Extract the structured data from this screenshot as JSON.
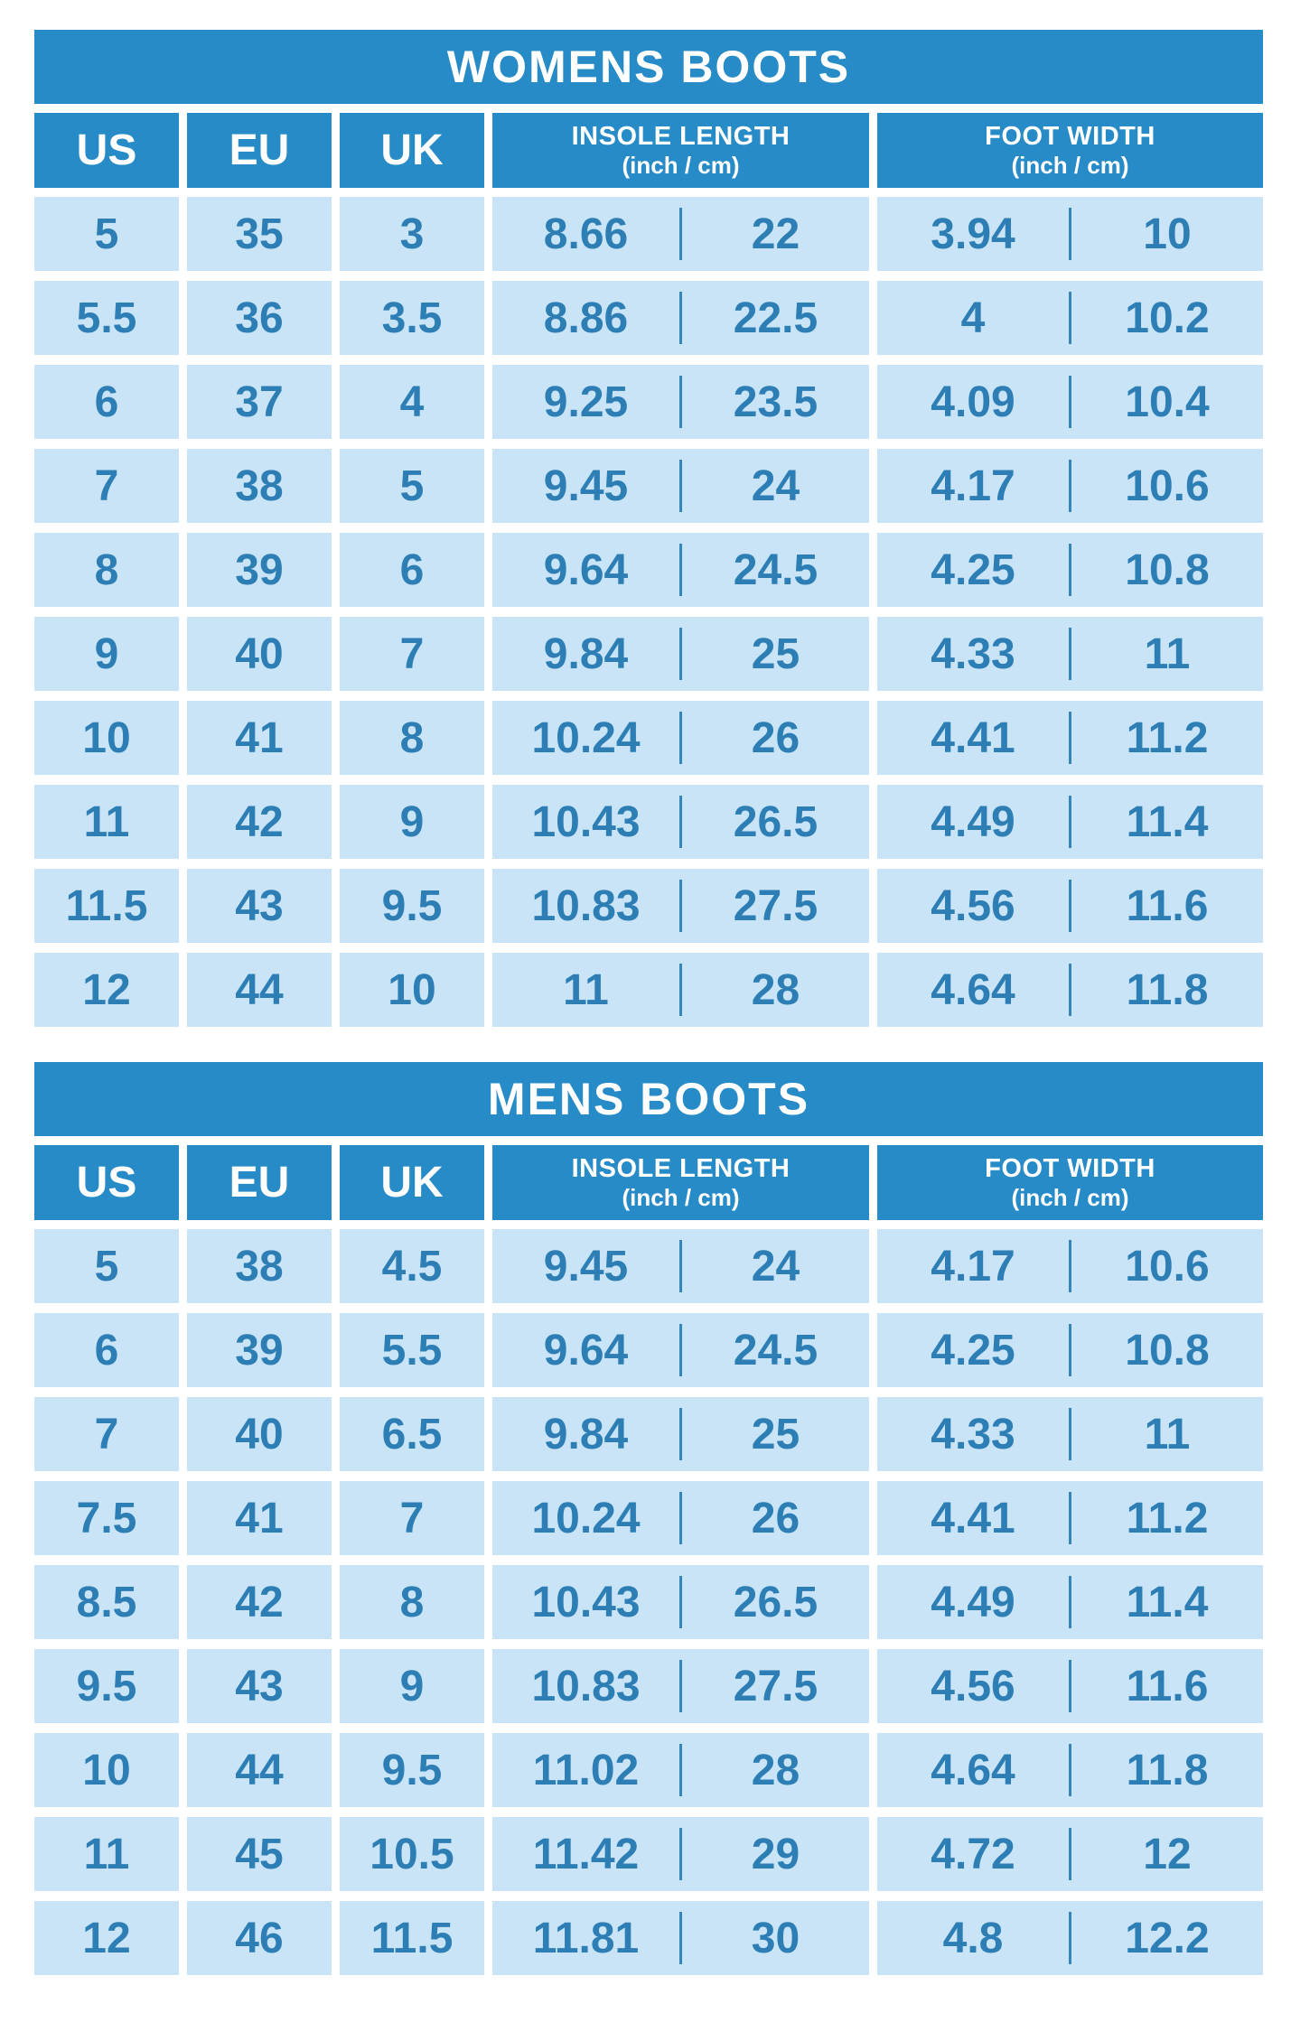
{
  "colors": {
    "header_blue": "#268bc7",
    "row_light_blue": "#c9e4f6",
    "value_text_blue": "#2c7eb4",
    "divider_blue": "#3585b8",
    "background": "#ffffff",
    "header_text": "#ffffff"
  },
  "chart_data": [
    {
      "type": "table",
      "title": "WOMENS BOOTS",
      "columns": [
        {
          "label": "US"
        },
        {
          "label": "EU"
        },
        {
          "label": "UK"
        },
        {
          "label": "INSOLE LENGTH",
          "sub": "(inch / cm)"
        },
        {
          "label": "FOOT WIDTH",
          "sub": "(inch / cm)"
        }
      ],
      "rows": [
        [
          "5",
          "35",
          "3",
          "8.66",
          "22",
          "3.94",
          "10"
        ],
        [
          "5.5",
          "36",
          "3.5",
          "8.86",
          "22.5",
          "4",
          "10.2"
        ],
        [
          "6",
          "37",
          "4",
          "9.25",
          "23.5",
          "4.09",
          "10.4"
        ],
        [
          "7",
          "38",
          "5",
          "9.45",
          "24",
          "4.17",
          "10.6"
        ],
        [
          "8",
          "39",
          "6",
          "9.64",
          "24.5",
          "4.25",
          "10.8"
        ],
        [
          "9",
          "40",
          "7",
          "9.84",
          "25",
          "4.33",
          "11"
        ],
        [
          "10",
          "41",
          "8",
          "10.24",
          "26",
          "4.41",
          "11.2"
        ],
        [
          "11",
          "42",
          "9",
          "10.43",
          "26.5",
          "4.49",
          "11.4"
        ],
        [
          "11.5",
          "43",
          "9.5",
          "10.83",
          "27.5",
          "4.56",
          "11.6"
        ],
        [
          "12",
          "44",
          "10",
          "11",
          "28",
          "4.64",
          "11.8"
        ]
      ]
    },
    {
      "type": "table",
      "title": "MENS BOOTS",
      "columns": [
        {
          "label": "US"
        },
        {
          "label": "EU"
        },
        {
          "label": "UK"
        },
        {
          "label": "INSOLE LENGTH",
          "sub": "(inch / cm)"
        },
        {
          "label": "FOOT WIDTH",
          "sub": "(inch / cm)"
        }
      ],
      "rows": [
        [
          "5",
          "38",
          "4.5",
          "9.45",
          "24",
          "4.17",
          "10.6"
        ],
        [
          "6",
          "39",
          "5.5",
          "9.64",
          "24.5",
          "4.25",
          "10.8"
        ],
        [
          "7",
          "40",
          "6.5",
          "9.84",
          "25",
          "4.33",
          "11"
        ],
        [
          "7.5",
          "41",
          "7",
          "10.24",
          "26",
          "4.41",
          "11.2"
        ],
        [
          "8.5",
          "42",
          "8",
          "10.43",
          "26.5",
          "4.49",
          "11.4"
        ],
        [
          "9.5",
          "43",
          "9",
          "10.83",
          "27.5",
          "4.56",
          "11.6"
        ],
        [
          "10",
          "44",
          "9.5",
          "11.02",
          "28",
          "4.64",
          "11.8"
        ],
        [
          "11",
          "45",
          "10.5",
          "11.42",
          "29",
          "4.72",
          "12"
        ],
        [
          "12",
          "46",
          "11.5",
          "11.81",
          "30",
          "4.8",
          "12.2"
        ]
      ]
    }
  ]
}
